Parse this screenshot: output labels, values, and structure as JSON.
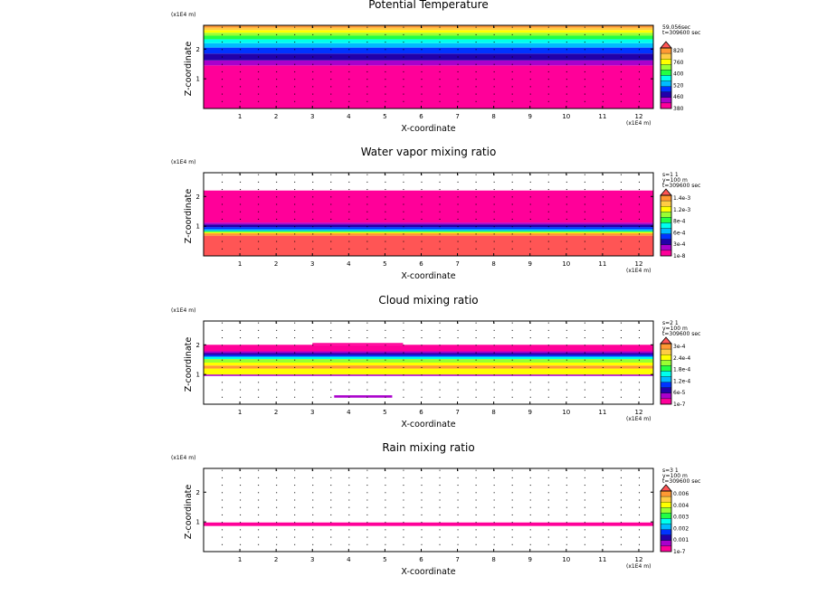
{
  "figure": {
    "colors": {
      "magenta": "#ff0099",
      "purple": "#aa00cc",
      "navy": "#2200aa",
      "blue": "#0033ff",
      "skyblue": "#00bbff",
      "cyan": "#00ffee",
      "green": "#22ff44",
      "lightgreen": "#99ff33",
      "yellow": "#ffff00",
      "lightorange": "#ffcc44",
      "orange": "#ff9933",
      "salmon": "#ff5555"
    }
  },
  "chart_data": [
    {
      "type": "heatmap",
      "title": "Potential Temperature",
      "xlabel": "X-coordinate",
      "ylabel": "Z-coordinate",
      "x_unit": "(x1E4 m)",
      "y_unit": "(x1E4 m)",
      "xlim": [
        0,
        12.4
      ],
      "ylim": [
        0,
        2.8
      ],
      "x_ticks": [
        "1",
        "2",
        "3",
        "4",
        "5",
        "6",
        "7",
        "8",
        "9",
        "10",
        "11",
        "12"
      ],
      "y_ticks": [
        "1",
        "2"
      ],
      "info_lines": [
        "59.056sec",
        "t=309600 sec"
      ],
      "colorbar_labels": [
        "820",
        "760",
        "400",
        "520",
        "460",
        "380"
      ],
      "colorbar_colors": [
        "#ff9933",
        "#ffcc44",
        "#ffff00",
        "#99ff33",
        "#22ff44",
        "#00ffee",
        "#00bbff",
        "#0033ff",
        "#2200aa",
        "#aa00cc",
        "#ff0099"
      ],
      "layers": [
        {
          "z0": 0.0,
          "z1": 1.45,
          "color": "#ff0099"
        },
        {
          "z0": 1.45,
          "z1": 1.62,
          "color": "#aa00cc"
        },
        {
          "z0": 1.62,
          "z1": 1.85,
          "color": "#2200aa"
        },
        {
          "z0": 1.85,
          "z1": 2.05,
          "color": "#0033ff"
        },
        {
          "z0": 2.05,
          "z1": 2.2,
          "color": "#00bbff"
        },
        {
          "z0": 2.2,
          "z1": 2.33,
          "color": "#00ffee"
        },
        {
          "z0": 2.33,
          "z1": 2.45,
          "color": "#22ff44"
        },
        {
          "z0": 2.45,
          "z1": 2.55,
          "color": "#99ff33"
        },
        {
          "z0": 2.55,
          "z1": 2.64,
          "color": "#ffff00"
        },
        {
          "z0": 2.64,
          "z1": 2.72,
          "color": "#ffcc44"
        },
        {
          "z0": 2.72,
          "z1": 2.8,
          "color": "#ff9933"
        }
      ]
    },
    {
      "type": "heatmap",
      "title": "Water vapor mixing ratio",
      "xlabel": "X-coordinate",
      "ylabel": "Z-coordinate",
      "x_unit": "(x1E4 m)",
      "y_unit": "(x1E4 m)",
      "xlim": [
        0,
        12.4
      ],
      "ylim": [
        0,
        2.8
      ],
      "x_ticks": [
        "1",
        "2",
        "3",
        "4",
        "5",
        "6",
        "7",
        "8",
        "9",
        "10",
        "11",
        "12"
      ],
      "y_ticks": [
        "1",
        "2"
      ],
      "info_lines": [
        "s=1 1",
        "y=100 m",
        "t=309600 sec"
      ],
      "colorbar_labels": [
        "1.4e-3",
        "1.2e-3",
        "8e-4",
        "6e-4",
        "3e-4",
        "1e-8"
      ],
      "colorbar_colors": [
        "#ff9933",
        "#ffcc44",
        "#ffff00",
        "#99ff33",
        "#22ff44",
        "#00ffee",
        "#00bbff",
        "#0033ff",
        "#2200aa",
        "#aa00cc",
        "#ff0099"
      ],
      "layers": [
        {
          "z0": 0.0,
          "z1": 0.68,
          "color": "#ff5555"
        },
        {
          "z0": 0.68,
          "z1": 0.76,
          "color": "#ff9933"
        },
        {
          "z0": 0.76,
          "z1": 0.8,
          "color": "#ffff00"
        },
        {
          "z0": 0.8,
          "z1": 0.84,
          "color": "#22ff44"
        },
        {
          "z0": 0.84,
          "z1": 0.9,
          "color": "#00bbff"
        },
        {
          "z0": 0.9,
          "z1": 0.97,
          "color": "#0033ff"
        },
        {
          "z0": 0.97,
          "z1": 1.06,
          "color": "#2200aa"
        },
        {
          "z0": 1.06,
          "z1": 1.12,
          "color": "#aa00cc"
        },
        {
          "z0": 1.12,
          "z1": 2.2,
          "color": "#ff0099"
        }
      ]
    },
    {
      "type": "heatmap",
      "title": "Cloud mixing ratio",
      "xlabel": "X-coordinate",
      "ylabel": "Z-coordinate",
      "x_unit": "(x1E4 m)",
      "y_unit": "(x1E4 m)",
      "xlim": [
        0,
        12.4
      ],
      "ylim": [
        0,
        2.8
      ],
      "x_ticks": [
        "1",
        "2",
        "3",
        "4",
        "5",
        "6",
        "7",
        "8",
        "9",
        "10",
        "11",
        "12"
      ],
      "y_ticks": [
        "1",
        "2"
      ],
      "info_lines": [
        "s=2 1",
        "y=100 m",
        "t=309600 sec"
      ],
      "colorbar_labels": [
        "3e-4",
        "2.4e-4",
        "1.8e-4",
        "1.2e-4",
        "6e-5",
        "1e-7"
      ],
      "colorbar_colors": [
        "#ff9933",
        "#ffcc44",
        "#ffff00",
        "#99ff33",
        "#22ff44",
        "#00ffee",
        "#00bbff",
        "#0033ff",
        "#2200aa",
        "#aa00cc",
        "#ff0099"
      ],
      "layers": [
        {
          "z0": 0.95,
          "z1": 1.0,
          "color": "#aa00cc"
        },
        {
          "z0": 1.0,
          "z1": 1.2,
          "color": "#ffff00"
        },
        {
          "z0": 1.2,
          "z1": 1.3,
          "color": "#ff9933"
        },
        {
          "z0": 1.3,
          "z1": 1.4,
          "color": "#ffff00"
        },
        {
          "z0": 1.4,
          "z1": 1.52,
          "color": "#99ff33"
        },
        {
          "z0": 1.52,
          "z1": 1.6,
          "color": "#00ffee"
        },
        {
          "z0": 1.6,
          "z1": 1.66,
          "color": "#0033ff"
        },
        {
          "z0": 1.66,
          "z1": 1.72,
          "color": "#2200aa"
        },
        {
          "z0": 1.72,
          "z1": 1.78,
          "color": "#aa00cc"
        },
        {
          "z0": 1.78,
          "z1": 2.0,
          "color": "#ff0099"
        }
      ],
      "patches": [
        {
          "x0": 3.6,
          "x1": 5.2,
          "z0": 0.22,
          "z1": 0.3,
          "color": "#aa00cc"
        },
        {
          "x0": 3.0,
          "x1": 9.5,
          "z0": 1.22,
          "z1": 1.3,
          "color": "#ff9933"
        },
        {
          "x0": 3.0,
          "x1": 5.5,
          "z0": 2.0,
          "z1": 2.06,
          "color": "#ff0099"
        }
      ]
    },
    {
      "type": "heatmap",
      "title": "Rain mixing ratio",
      "xlabel": "X-coordinate",
      "ylabel": "Z-coordinate",
      "x_unit": "(x1E4 m)",
      "y_unit": "(x1E4 m)",
      "xlim": [
        0,
        12.4
      ],
      "ylim": [
        0,
        2.8
      ],
      "x_ticks": [
        "1",
        "2",
        "3",
        "4",
        "5",
        "6",
        "7",
        "8",
        "9",
        "10",
        "11",
        "12"
      ],
      "y_ticks": [
        "1",
        "2"
      ],
      "info_lines": [
        "s=3 1",
        "y=100 m",
        "t=309600 sec"
      ],
      "colorbar_labels": [
        "0.006",
        "0.004",
        "0.003",
        "0.002",
        "0.001",
        "1e-7"
      ],
      "colorbar_colors": [
        "#ff9933",
        "#ffcc44",
        "#ffff00",
        "#99ff33",
        "#22ff44",
        "#00ffee",
        "#00bbff",
        "#0033ff",
        "#2200aa",
        "#aa00cc",
        "#ff0099"
      ],
      "layers": [
        {
          "z0": 0.88,
          "z1": 0.98,
          "color": "#ff0099"
        }
      ],
      "patches": [
        {
          "x0": 0.0,
          "x1": 12.4,
          "z0": 0.86,
          "z1": 0.88,
          "color": "#ff0099"
        }
      ]
    }
  ]
}
